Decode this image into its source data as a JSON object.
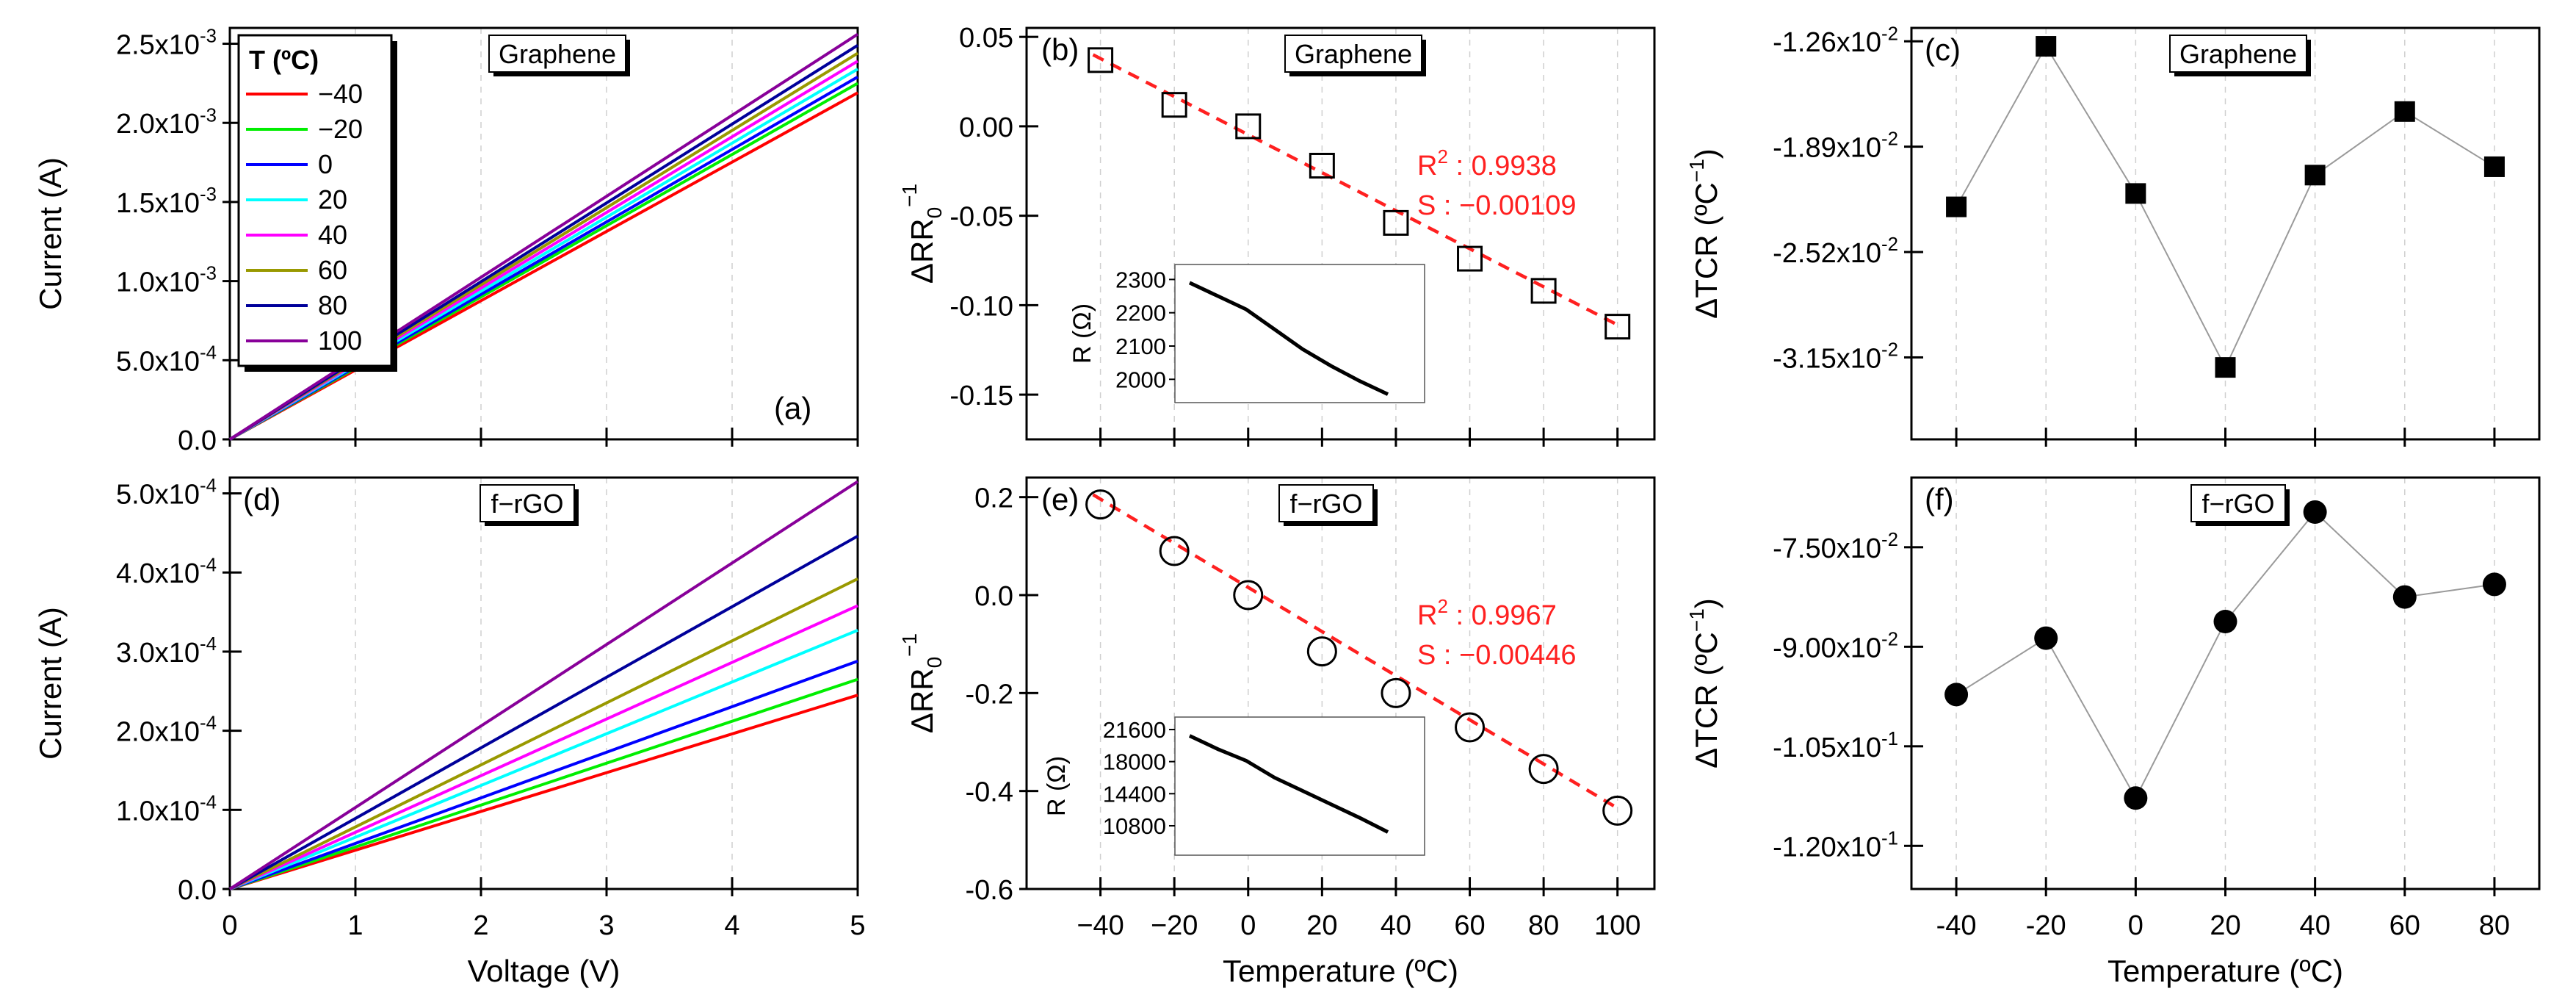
{
  "figure_title": "Graphene and f-rGO temperature dependent electrical characterization",
  "colors": {
    "red": "#ff0000",
    "green": "#00ee00",
    "blue": "#0000ff",
    "cyan": "#00ffff",
    "magenta": "#ff00ff",
    "olive": "#999900",
    "navy": "#00009a",
    "purple": "#880099",
    "black": "#000000",
    "fit_red": "#ff2020",
    "grid": "#c8c8c8"
  },
  "chart_data": [
    {
      "id": "a",
      "type": "line",
      "panel_label": "(a)",
      "tag": "Graphene",
      "xlabel": "",
      "ylabel": "Current (A)",
      "xlim": [
        0,
        5
      ],
      "ylim": [
        0,
        0.0026
      ],
      "xticks": [
        0,
        1,
        2,
        3,
        4,
        5
      ],
      "xtick_labels": [
        "",
        "",
        "",
        "",
        "",
        ""
      ],
      "yticks": [
        0,
        0.0005,
        0.001,
        0.0015,
        0.002,
        0.0025
      ],
      "ytick_labels": [
        "0.0",
        "5.0x10",
        "1.0x10",
        "1.5x10",
        "2.0x10",
        "2.5x10"
      ],
      "ytick_exps": [
        "",
        "-4",
        "-3",
        "-3",
        "-3",
        "-3"
      ],
      "legend": {
        "title": "T (ºC)",
        "position": "top-left"
      },
      "series": [
        {
          "name": "-40",
          "label": "−40",
          "color": "#ff0000",
          "x": [
            0,
            5
          ],
          "y": [
            0,
            0.00219
          ]
        },
        {
          "name": "-20",
          "label": "−20",
          "color": "#00ee00",
          "x": [
            0,
            5
          ],
          "y": [
            0,
            0.00225
          ]
        },
        {
          "name": "0",
          "label": "0",
          "color": "#0000ff",
          "x": [
            0,
            5
          ],
          "y": [
            0,
            0.00229
          ]
        },
        {
          "name": "20",
          "label": "20",
          "color": "#00ffff",
          "x": [
            0,
            5
          ],
          "y": [
            0,
            0.00234
          ]
        },
        {
          "name": "40",
          "label": "40",
          "color": "#ff00ff",
          "x": [
            0,
            5
          ],
          "y": [
            0,
            0.00239
          ]
        },
        {
          "name": "60",
          "label": "60",
          "color": "#999900",
          "x": [
            0,
            5
          ],
          "y": [
            0,
            0.00244
          ]
        },
        {
          "name": "80",
          "label": "80",
          "color": "#00009a",
          "x": [
            0,
            5
          ],
          "y": [
            0,
            0.00249
          ]
        },
        {
          "name": "100",
          "label": "100",
          "color": "#880099",
          "x": [
            0,
            5
          ],
          "y": [
            0,
            0.00256
          ]
        }
      ]
    },
    {
      "id": "b",
      "type": "scatter",
      "panel_label": "(b)",
      "tag": "Graphene",
      "xlabel": "",
      "ylabel": "ΔRR",
      "xlim": [
        -60,
        110
      ],
      "ylim": [
        -0.175,
        0.055
      ],
      "xticks": [
        -40,
        -20,
        0,
        20,
        40,
        60,
        80,
        100
      ],
      "xtick_labels": [
        "",
        "",
        "",
        "",
        "",
        "",
        "",
        ""
      ],
      "yticks": [
        0.05,
        0,
        -0.05,
        -0.1,
        -0.15
      ],
      "ytick_labels": [
        "0.05",
        "0.00",
        "-0.05",
        "-0.10",
        "-0.15"
      ],
      "marker": "open-square",
      "x": [
        -40,
        -20,
        0,
        20,
        40,
        60,
        80,
        100
      ],
      "y": [
        0.037,
        0.012,
        0.0,
        -0.022,
        -0.054,
        -0.074,
        -0.092,
        -0.112
      ],
      "fit": {
        "x": [
          -42,
          100
        ],
        "y": [
          0.04,
          -0.111
        ],
        "r2_label": "R",
        "r2_value": ": 0.9938",
        "slope_text": "S : −0.00109"
      },
      "inset": {
        "ylabel": "R (Ω)",
        "yticks": [
          2000,
          2100,
          2200,
          2300
        ],
        "ytick_labels": [
          "2000",
          "2100",
          "2200",
          "2300"
        ],
        "ylim": [
          1930,
          2345
        ],
        "x": [
          -40,
          -20,
          0,
          20,
          40,
          60,
          80,
          100
        ],
        "y": [
          2290,
          2250,
          2210,
          2150,
          2090,
          2040,
          1995,
          1955
        ]
      }
    },
    {
      "id": "c",
      "type": "line",
      "panel_label": "(c)",
      "tag": "Graphene",
      "xlabel": "",
      "ylabel": "ΔTCR",
      "xlim": [
        -50,
        90
      ],
      "ylim": [
        -0.0364,
        -0.0118
      ],
      "xticks": [
        -40,
        -20,
        0,
        20,
        40,
        60,
        80
      ],
      "xtick_labels": [
        "",
        "",
        "",
        "",
        "",
        "",
        ""
      ],
      "yticks": [
        -0.0126,
        -0.0189,
        -0.0252,
        -0.0315
      ],
      "ytick_labels": [
        "-1.26x10",
        "-1.89x10",
        "-2.52x10",
        "-3.15x10"
      ],
      "ytick_exps": [
        "-2",
        "-2",
        "-2",
        "-2"
      ],
      "marker": "filled-square",
      "x": [
        -40,
        -20,
        0,
        20,
        40,
        60,
        80
      ],
      "y": [
        -0.0225,
        -0.0129,
        -0.0217,
        -0.0321,
        -0.0206,
        -0.0168,
        -0.0201
      ]
    },
    {
      "id": "d",
      "type": "line",
      "panel_label": "(d)",
      "tag": "f−rGO",
      "xlabel": "Voltage (V)",
      "ylabel": "Current (A)",
      "xlim": [
        0,
        5
      ],
      "ylim": [
        0,
        0.00052
      ],
      "xticks": [
        0,
        1,
        2,
        3,
        4,
        5
      ],
      "xtick_labels": [
        "0",
        "1",
        "2",
        "3",
        "4",
        "5"
      ],
      "yticks": [
        0,
        0.0001,
        0.0002,
        0.0003,
        0.0004,
        0.0005
      ],
      "ytick_labels": [
        "0.0",
        "1.0x10",
        "2.0x10",
        "3.0x10",
        "4.0x10",
        "5.0x10"
      ],
      "ytick_exps": [
        "",
        "-4",
        "-4",
        "-4",
        "-4",
        "-4"
      ],
      "series": [
        {
          "name": "-40",
          "color": "#ff0000",
          "x": [
            0,
            5
          ],
          "y": [
            0,
            0.000245
          ]
        },
        {
          "name": "-20",
          "color": "#00ee00",
          "x": [
            0,
            5
          ],
          "y": [
            0,
            0.000265
          ]
        },
        {
          "name": "0",
          "color": "#0000ff",
          "x": [
            0,
            5
          ],
          "y": [
            0,
            0.000288
          ]
        },
        {
          "name": "20",
          "color": "#00ffff",
          "x": [
            0,
            5
          ],
          "y": [
            0,
            0.000327
          ]
        },
        {
          "name": "40",
          "color": "#ff00ff",
          "x": [
            0,
            5
          ],
          "y": [
            0,
            0.000358
          ]
        },
        {
          "name": "60",
          "color": "#999900",
          "x": [
            0,
            5
          ],
          "y": [
            0,
            0.000392
          ]
        },
        {
          "name": "80",
          "color": "#00009a",
          "x": [
            0,
            5
          ],
          "y": [
            0,
            0.000446
          ]
        },
        {
          "name": "100",
          "color": "#880099",
          "x": [
            0,
            5
          ],
          "y": [
            0,
            0.000515
          ]
        }
      ]
    },
    {
      "id": "e",
      "type": "scatter",
      "panel_label": "(e)",
      "tag": "f−rGO",
      "xlabel": "Temperature (ºC)",
      "ylabel": "ΔRR",
      "xlim": [
        -60,
        110
      ],
      "ylim": [
        -0.6,
        0.24
      ],
      "xticks": [
        -40,
        -20,
        0,
        20,
        40,
        60,
        80,
        100
      ],
      "xtick_labels": [
        "−40",
        "−20",
        "0",
        "20",
        "40",
        "60",
        "80",
        "100"
      ],
      "yticks": [
        0.2,
        0,
        -0.2,
        -0.4,
        -0.6
      ],
      "ytick_labels": [
        "0.2",
        "0.0",
        "-0.2",
        "-0.4",
        "-0.6"
      ],
      "marker": "open-circle",
      "x": [
        -40,
        -20,
        0,
        20,
        40,
        60,
        80,
        100
      ],
      "y": [
        0.185,
        0.09,
        0.0,
        -0.115,
        -0.2,
        -0.27,
        -0.355,
        -0.44
      ],
      "fit": {
        "x": [
          -42,
          100
        ],
        "y": [
          0.205,
          -0.435
        ],
        "r2_label": "R",
        "r2_value": ": 0.9967",
        "slope_text": "S : −0.00446"
      },
      "inset": {
        "ylabel": "R (Ω)",
        "yticks": [
          10800,
          14400,
          18000,
          21600
        ],
        "ytick_labels": [
          "10800",
          "14400",
          "18000",
          "21600"
        ],
        "ylim": [
          7500,
          23000
        ],
        "x": [
          -40,
          -20,
          0,
          20,
          40,
          60,
          80,
          100
        ],
        "y": [
          20900,
          19400,
          18100,
          16200,
          14700,
          13200,
          11700,
          10100
        ]
      }
    },
    {
      "id": "f",
      "type": "line",
      "panel_label": "(f)",
      "tag": "f−rGO",
      "xlabel": "Temperature (ºC)",
      "ylabel": "ΔTCR",
      "xlim": [
        -50,
        90
      ],
      "ylim": [
        -0.1265,
        -0.0645
      ],
      "xticks": [
        -40,
        -20,
        0,
        20,
        40,
        60,
        80
      ],
      "xtick_labels": [
        "-40",
        "-20",
        "0",
        "20",
        "40",
        "60",
        "80"
      ],
      "yticks": [
        -0.075,
        -0.09,
        -0.105,
        -0.12
      ],
      "ytick_labels": [
        "-7.50x10",
        "-9.00x10",
        "-1.05x10",
        "-1.20x10"
      ],
      "ytick_exps": [
        "-2",
        "-2",
        "-1",
        "-1"
      ],
      "marker": "filled-circle",
      "x": [
        -40,
        -20,
        0,
        20,
        40,
        60,
        80
      ],
      "y": [
        -0.0972,
        -0.0887,
        -0.1128,
        -0.0862,
        -0.0697,
        -0.0825,
        -0.0806
      ]
    }
  ]
}
